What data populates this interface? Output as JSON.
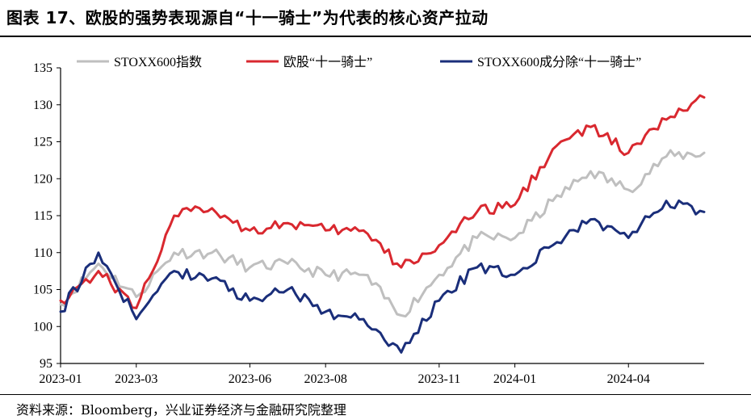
{
  "title": "图表 17、欧股的强势表现源自“十一骑士”为代表的核心资产拉动",
  "source": "资料来源：Bloomberg，兴业证券经济与金融研究院整理",
  "chart_data": {
    "type": "line",
    "xlabel": "",
    "ylabel": "",
    "ylim": [
      95,
      135
    ],
    "yticks": [
      "95",
      "100",
      "105",
      "110",
      "115",
      "120",
      "125",
      "130",
      "135"
    ],
    "xticks": [
      "2023-01",
      "2023-03",
      "2023-06",
      "2023-08",
      "2023-11",
      "2024-01",
      "2024-04"
    ],
    "x": [
      "2023-01",
      "2023-02",
      "2023-03",
      "2023-04",
      "2023-05",
      "2023-06",
      "2023-07",
      "2023-08",
      "2023-09",
      "2023-10",
      "2023-11",
      "2023-12",
      "2024-01",
      "2024-02",
      "2024-03",
      "2024-04",
      "2024-05",
      "2024-06"
    ],
    "grid": false,
    "legend": "top",
    "series": [
      {
        "name": "STOXX600指数",
        "color": "#bfbfbf",
        "values": [
          103,
          108.5,
          104,
          110,
          110,
          108,
          108.5,
          107,
          107,
          101.5,
          107,
          112,
          112,
          117,
          121,
          118.5,
          123,
          123.5
        ]
      },
      {
        "name": "欧股“十一骑士”",
        "color": "#d9282f",
        "values": [
          103.5,
          107.5,
          102.5,
          115,
          116,
          113,
          114,
          113,
          113,
          108,
          111,
          115.5,
          116.5,
          124,
          127,
          123.5,
          128,
          131
        ]
      },
      {
        "name": "STOXX600成分除“十一骑士”",
        "color": "#1a2e7a",
        "values": [
          102,
          110,
          101,
          107.5,
          106.5,
          103.5,
          105,
          102,
          101,
          96.5,
          103.5,
          108,
          107,
          111,
          114.5,
          112,
          117,
          115.5
        ]
      }
    ]
  }
}
